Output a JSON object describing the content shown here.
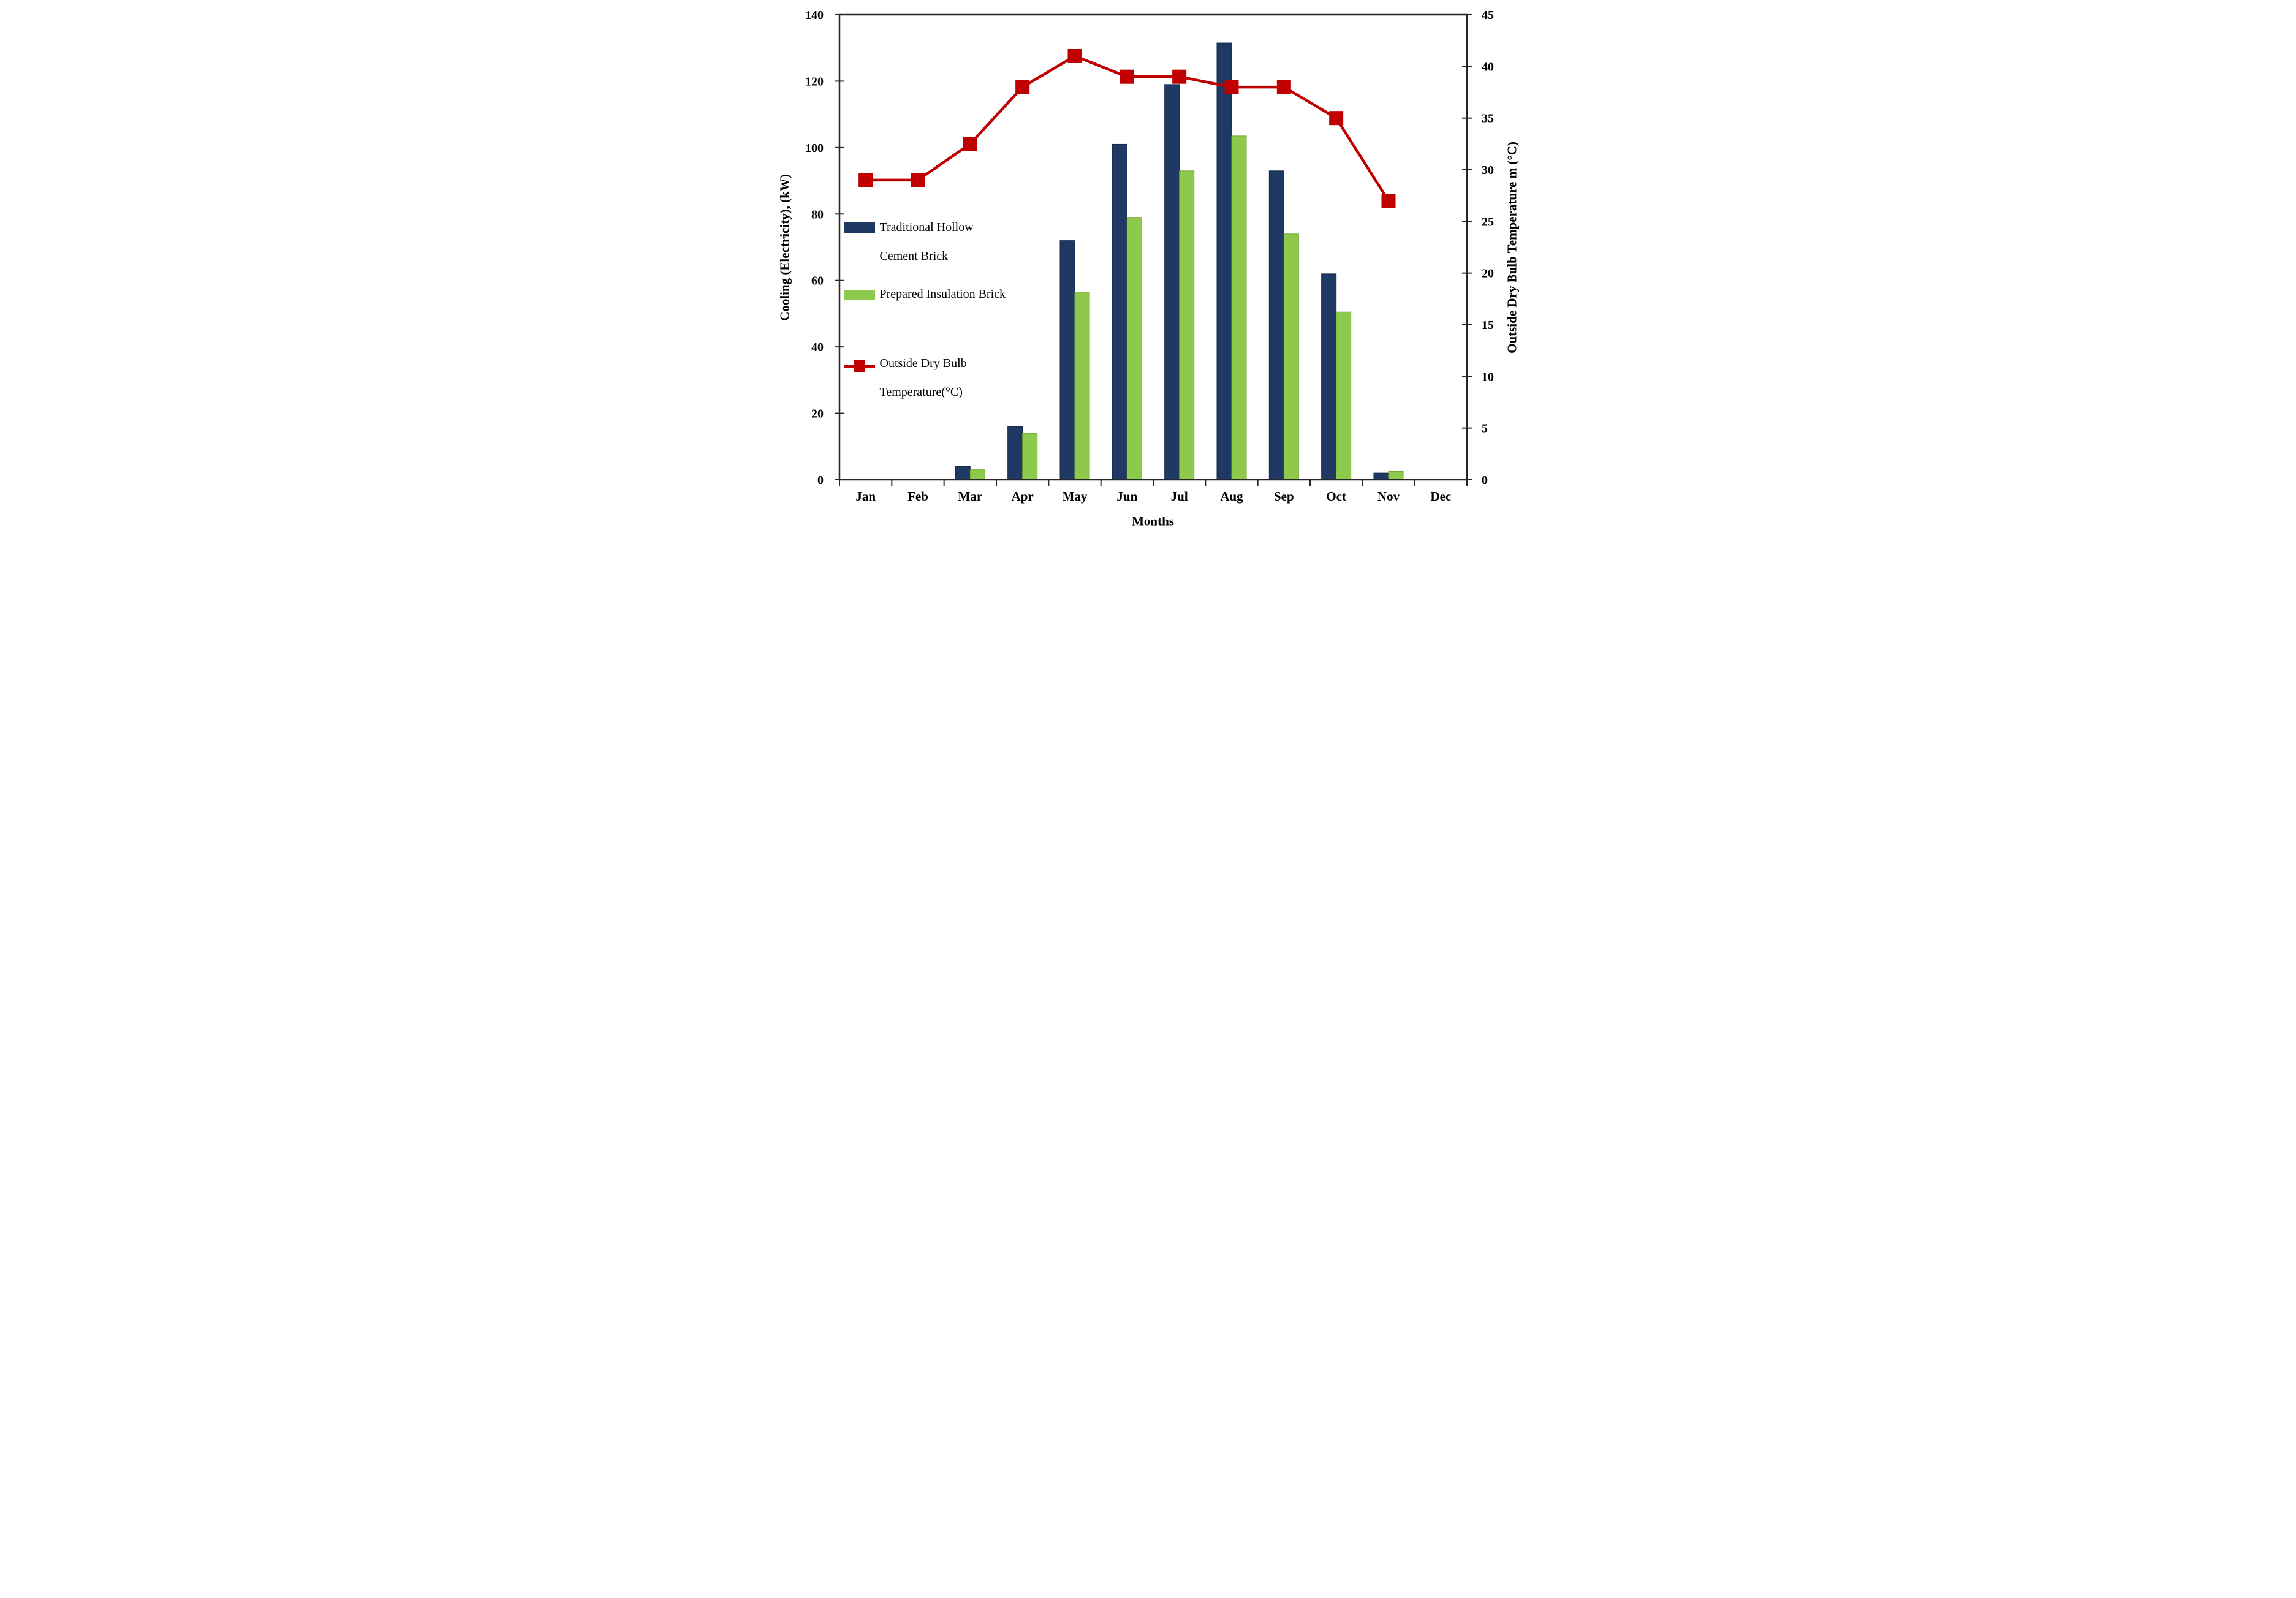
{
  "figure": {
    "background": "#ffffff",
    "frame_color": "#262626",
    "text_color": "#000000"
  },
  "axes": {
    "x": {
      "title": "Months",
      "categories": [
        "Jan",
        "Feb",
        "Mar",
        "Apr",
        "May",
        "Jun",
        "Jul",
        "Aug",
        "Sep",
        "Oct",
        "Nov",
        "Dec"
      ]
    },
    "y_left": {
      "title": "Cooling (Electricity), (kW)",
      "min": 0,
      "max": 140,
      "ticks": [
        0,
        20,
        40,
        60,
        80,
        100,
        120,
        140
      ]
    },
    "y_right": {
      "title": "Outside Dry Bulb Temperature m (°C)",
      "min": 0,
      "max": 45,
      "ticks": [
        0,
        5,
        10,
        15,
        20,
        25,
        30,
        35,
        40,
        45
      ]
    }
  },
  "legend": {
    "position": "inside-left",
    "items": [
      {
        "type": "bar",
        "color": "#1F3864",
        "label_lines": [
          "Traditional Hollow",
          "Cement Brick"
        ]
      },
      {
        "type": "bar",
        "color": "#8DC94B",
        "label_lines": [
          "Prepared Insulation Brick",
          ""
        ]
      },
      {
        "type": "line-marker",
        "color": "#C00000",
        "label_lines": [
          "Outside Dry Bulb",
          "Temperature(°C)"
        ]
      }
    ]
  },
  "chart_data": {
    "type": "bar+line",
    "title": "",
    "xlabel": "Months",
    "ylabel_left": "Cooling (Electricity), (kW)",
    "ylabel_right": "Outside Dry Bulb Temperature m (°C)",
    "categories": [
      "Jan",
      "Feb",
      "Mar",
      "Apr",
      "May",
      "Jun",
      "Jul",
      "Aug",
      "Sep",
      "Oct",
      "Nov",
      "Dec"
    ],
    "ylim_left": [
      0,
      140
    ],
    "ylim_right": [
      0,
      45
    ],
    "grid": false,
    "legend_position": "inside-left",
    "series": [
      {
        "name": "Traditional Hollow Cement Brick",
        "type": "bar",
        "axis": "left",
        "color": "#1F3864",
        "edge_color": "#142744",
        "values": [
          0,
          0,
          4,
          16,
          72,
          101,
          119,
          131.5,
          93,
          62,
          2,
          0
        ]
      },
      {
        "name": "Prepared Insulation Brick",
        "type": "bar",
        "axis": "left",
        "color": "#8DC94B",
        "edge_color": "#6FA82F",
        "values": [
          0,
          0,
          3,
          14,
          56.5,
          79,
          93,
          103.5,
          74,
          50.5,
          2.5,
          0
        ]
      },
      {
        "name": "Outside Dry Bulb Temperature (°C)",
        "type": "line",
        "axis": "right",
        "color": "#C00000",
        "marker": "square",
        "values": [
          29,
          29,
          32.5,
          38,
          41,
          39,
          39,
          38,
          38,
          35,
          27,
          null
        ]
      }
    ]
  }
}
